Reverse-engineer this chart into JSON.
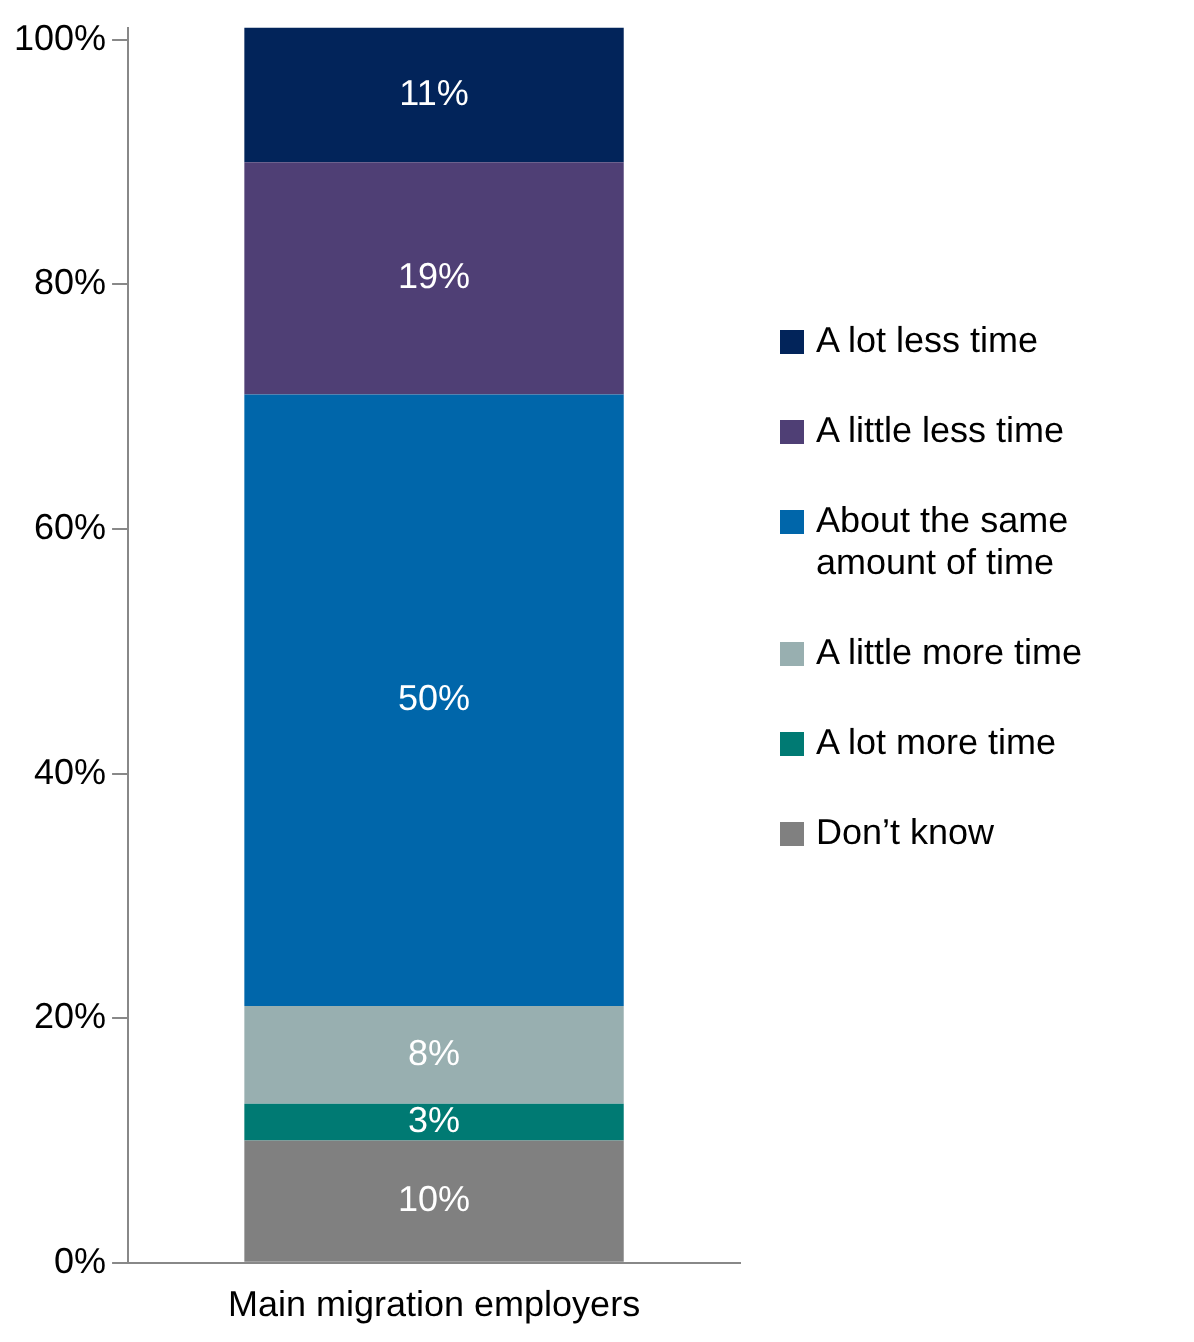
{
  "chart_data": {
    "type": "bar",
    "stacked": true,
    "categories": [
      "Main migration employers"
    ],
    "series": [
      {
        "name": "Don’t know",
        "color": "#808080",
        "values": [
          10
        ],
        "value_labels": [
          "10%"
        ]
      },
      {
        "name": "A lot more time",
        "color": "#007a73",
        "values": [
          3
        ],
        "value_labels": [
          "3%"
        ]
      },
      {
        "name": "A little more time",
        "color": "#98afb0",
        "values": [
          8
        ],
        "value_labels": [
          "8%"
        ]
      },
      {
        "name": "About the same amount of time",
        "color": "#0066aa",
        "values": [
          50
        ],
        "value_labels": [
          "50%"
        ]
      },
      {
        "name": "A little less time",
        "color": "#4f3f75",
        "values": [
          19
        ],
        "value_labels": [
          "19%"
        ]
      },
      {
        "name": "A lot less time",
        "color": "#02245a",
        "values": [
          11
        ],
        "value_labels": [
          "11%"
        ]
      }
    ],
    "ylim": [
      0,
      101
    ],
    "yticks": [
      {
        "value": 0,
        "label": "0%"
      },
      {
        "value": 20,
        "label": "20%"
      },
      {
        "value": 40,
        "label": "40%"
      },
      {
        "value": 60,
        "label": "60%"
      },
      {
        "value": 80,
        "label": "80%"
      },
      {
        "value": 100,
        "label": "100%"
      }
    ],
    "grid": false,
    "legend": "right"
  }
}
